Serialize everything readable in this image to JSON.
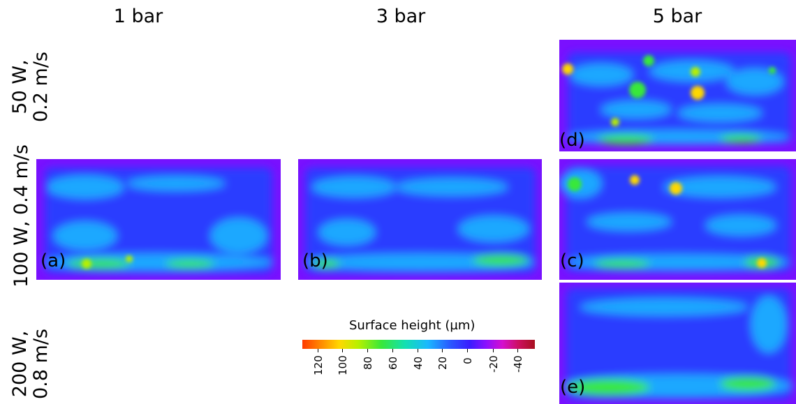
{
  "columns": [
    "1 bar",
    "3 bar",
    "5 bar"
  ],
  "rows": [
    {
      "line1": "50 W,",
      "line2": "0.2 m/s"
    },
    {
      "line1": "100 W, 0.4 m/s",
      "line2": ""
    },
    {
      "line1": "200 W,",
      "line2": "0.8 m/s"
    }
  ],
  "panels": {
    "a": "(a)",
    "b": "(b)",
    "c": "(c)",
    "d": "(d)",
    "e": "(e)"
  },
  "legend": {
    "title": "Surface height (µm)",
    "ticks": [
      "120",
      "100",
      "80",
      "60",
      "40",
      "20",
      "0",
      "-20",
      "-40"
    ]
  },
  "colors": {
    "background": "#7a10ff",
    "low": "#2a3cff",
    "mid": "#1ea8ff",
    "high": "#38e83a",
    "peak": "#ffd800"
  }
}
